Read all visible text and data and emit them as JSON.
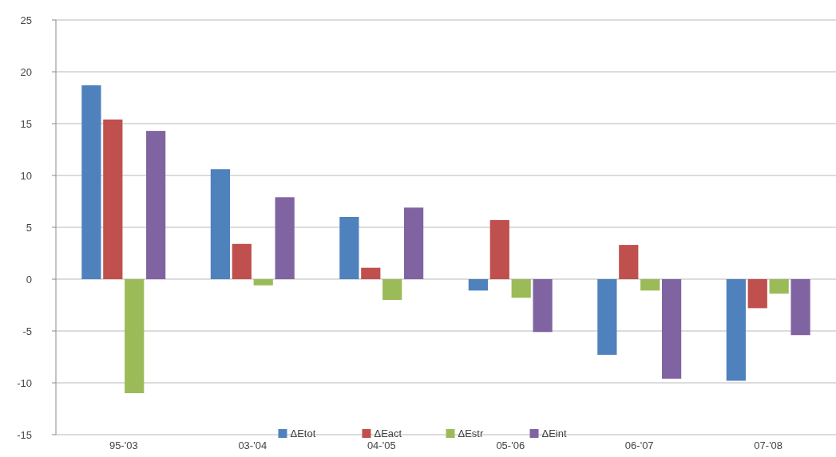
{
  "chart_data": {
    "type": "bar",
    "categories": [
      "95-'03",
      "03-'04",
      "04-'05",
      "05-'06",
      "06-'07",
      "07-'08"
    ],
    "series": [
      {
        "name": "ΔEtot",
        "color": "#4f81bd",
        "values": [
          18.7,
          10.6,
          6.0,
          -1.1,
          -7.3,
          -9.8
        ]
      },
      {
        "name": "ΔEact",
        "color": "#c0504d",
        "values": [
          15.4,
          3.4,
          1.1,
          5.7,
          3.3,
          -2.8
        ]
      },
      {
        "name": "ΔEstr",
        "color": "#9bbb59",
        "values": [
          -11.0,
          -0.6,
          -2.0,
          -1.8,
          -1.1,
          -1.4
        ]
      },
      {
        "name": "ΔEint",
        "color": "#8064a2",
        "values": [
          14.3,
          7.9,
          6.9,
          -5.1,
          -9.6,
          -5.4
        ]
      }
    ],
    "ylim": [
      -15,
      25
    ],
    "yticks": [
      -15,
      -10,
      -5,
      0,
      5,
      10,
      15,
      20,
      25
    ],
    "grid": "y",
    "legend": "bottom"
  }
}
